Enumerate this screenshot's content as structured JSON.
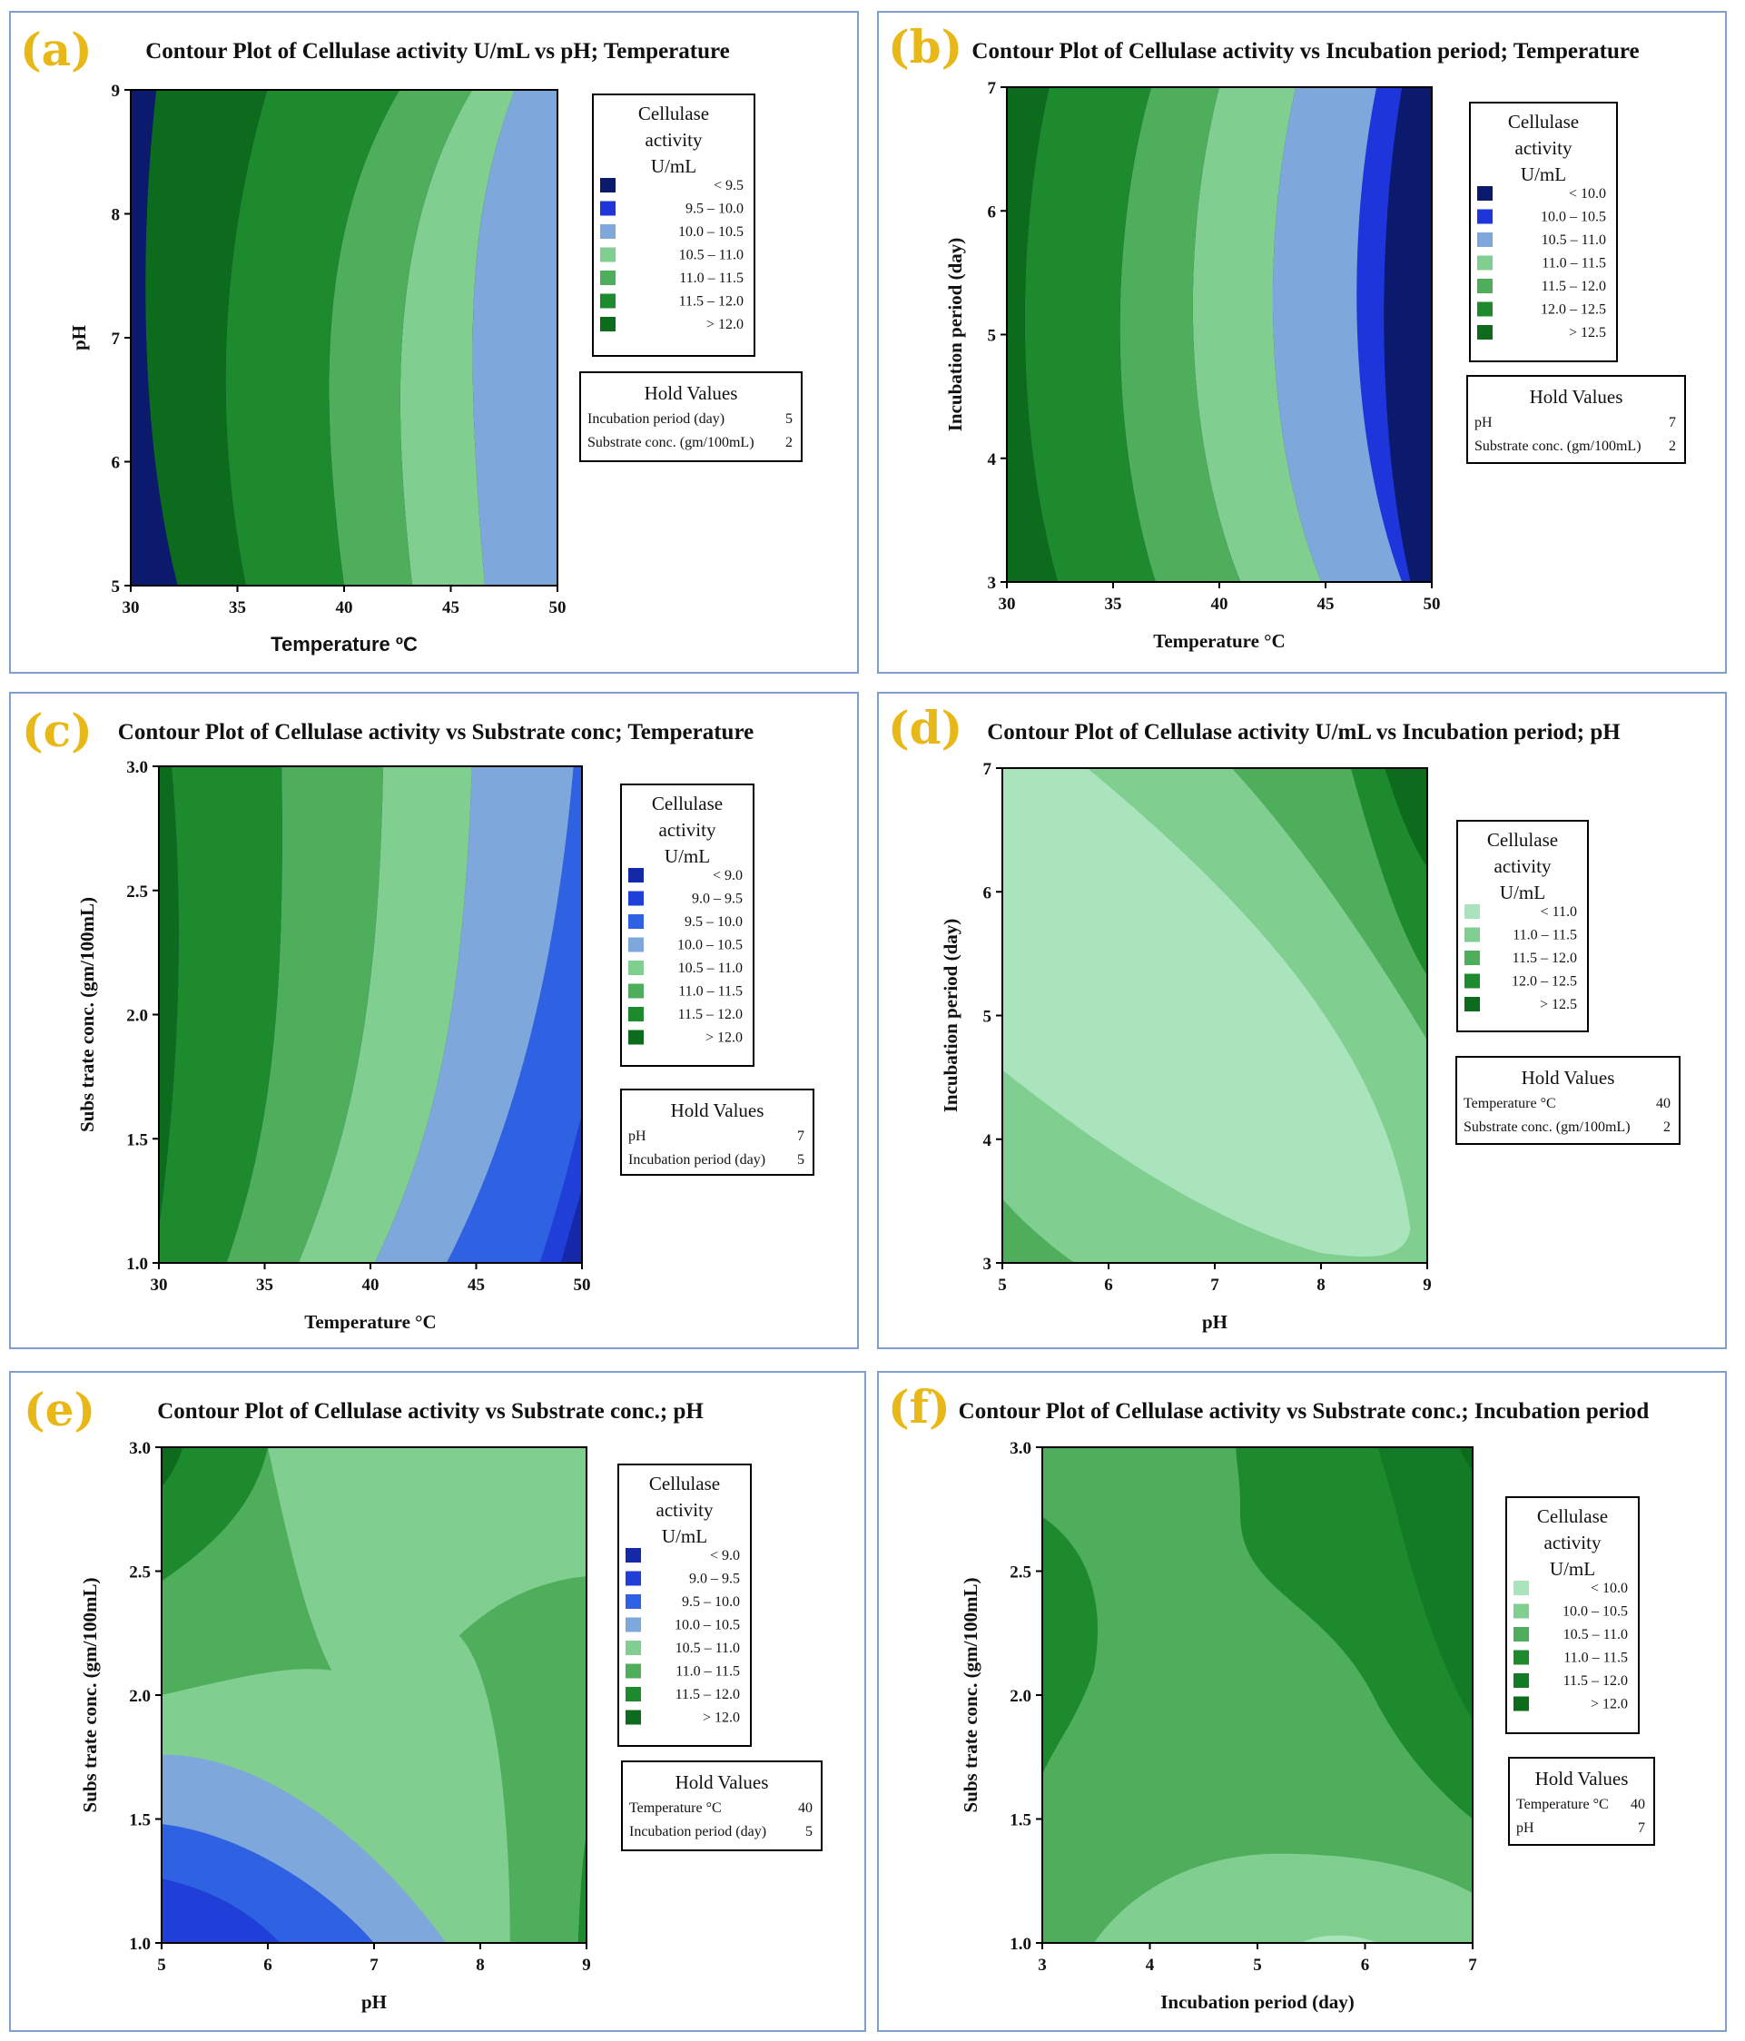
{
  "figure": {
    "panels_count": 6
  },
  "chart_data": [
    {
      "id": "a",
      "type": "contour",
      "label": "(a)",
      "title": "Contour Plot of Cellulase activity U/mL vs pH; Temperature",
      "xlabel": "Temperature ºC",
      "ylabel": "pH",
      "xlim": [
        30,
        50
      ],
      "ylim": [
        5,
        9
      ],
      "xticks": [
        "30",
        "35",
        "40",
        "45",
        "50"
      ],
      "yticks": [
        "5",
        "6",
        "7",
        "8",
        "9"
      ],
      "legend": {
        "title": [
          "Cellulase",
          "activity",
          "U/mL"
        ],
        "levels": [
          {
            "range": "<  9.5",
            "color": "#0c1a6e"
          },
          {
            "range": "9.5  –  10.0",
            "color": "#1f35dc"
          },
          {
            "range": "10.0  –  10.5",
            "color": "#7ea7dc"
          },
          {
            "range": "10.5  –  11.0",
            "color": "#80ce90"
          },
          {
            "range": "11.0  –  11.5",
            "color": "#4fae5c"
          },
          {
            "range": "11.5  –  12.0",
            "color": "#1e8a2e"
          },
          {
            "range": ">  12.0",
            "color": "#0d6b1e"
          }
        ]
      },
      "hold": {
        "title": "Hold Values",
        "rows": [
          {
            "name": "Incubation period (day)",
            "value": "5"
          },
          {
            "name": "Substrate conc. (gm/100mL)",
            "value": "2"
          }
        ]
      }
    },
    {
      "id": "b",
      "type": "contour",
      "label": "(b)",
      "title": "Contour Plot of Cellulase activity vs Incubation period; Temperature",
      "xlabel": "Temperature °C",
      "ylabel": "Incubation period (day)",
      "xlim": [
        30,
        50
      ],
      "ylim": [
        3,
        7
      ],
      "xticks": [
        "30",
        "35",
        "40",
        "45",
        "50"
      ],
      "yticks": [
        "3",
        "4",
        "5",
        "6",
        "7"
      ],
      "legend": {
        "title": [
          "Cellulase",
          "activity",
          "U/mL"
        ],
        "levels": [
          {
            "range": "<  10.0",
            "color": "#0c1a6e"
          },
          {
            "range": "10.0  –  10.5",
            "color": "#1f35dc"
          },
          {
            "range": "10.5  –  11.0",
            "color": "#7ea7dc"
          },
          {
            "range": "11.0  –  11.5",
            "color": "#80ce90"
          },
          {
            "range": "11.5  –  12.0",
            "color": "#4fae5c"
          },
          {
            "range": "12.0  –  12.5",
            "color": "#1e8a2e"
          },
          {
            "range": ">  12.5",
            "color": "#0d6b1e"
          }
        ]
      },
      "hold": {
        "title": "Hold Values",
        "rows": [
          {
            "name": "pH",
            "value": "7"
          },
          {
            "name": "Substrate conc. (gm/100mL)",
            "value": "2"
          }
        ]
      }
    },
    {
      "id": "c",
      "type": "contour",
      "label": "(c)",
      "title": "Contour Plot of Cellulase activity vs Substrate conc; Temperature",
      "xlabel": "Temperature °C",
      "ylabel": "Subs trate conc. (gm/100mL)",
      "xlim": [
        30,
        50
      ],
      "ylim": [
        1.0,
        3.0
      ],
      "xticks": [
        "30",
        "35",
        "40",
        "45",
        "50"
      ],
      "yticks": [
        "1.0",
        "1.5",
        "2.0",
        "2.5",
        "3.0"
      ],
      "legend": {
        "title": [
          "Cellulase",
          "activity",
          "U/mL"
        ],
        "levels": [
          {
            "range": "<  9.0",
            "color": "#1428a8"
          },
          {
            "range": "9.0  –  9.5",
            "color": "#1f3fd8"
          },
          {
            "range": "9.5  –  10.0",
            "color": "#2f62e2"
          },
          {
            "range": "10.0  –  10.5",
            "color": "#7ea7dc"
          },
          {
            "range": "10.5  –  11.0",
            "color": "#80ce90"
          },
          {
            "range": "11.0  –  11.5",
            "color": "#4fae5c"
          },
          {
            "range": "11.5  –  12.0",
            "color": "#1e8a2e"
          },
          {
            "range": ">  12.0",
            "color": "#0d6b1e"
          }
        ]
      },
      "hold": {
        "title": "Hold Values",
        "rows": [
          {
            "name": "pH",
            "value": "7"
          },
          {
            "name": "Incubation period (day)",
            "value": "5"
          }
        ]
      }
    },
    {
      "id": "d",
      "type": "contour",
      "label": "(d)",
      "title": "Contour Plot of Cellulase activity U/mL vs Incubation period; pH",
      "xlabel": "pH",
      "ylabel": "Incubation period (day)",
      "xlim": [
        5,
        9
      ],
      "ylim": [
        3,
        7
      ],
      "xticks": [
        "5",
        "6",
        "7",
        "8",
        "9"
      ],
      "yticks": [
        "3",
        "4",
        "5",
        "6",
        "7"
      ],
      "legend": {
        "title": [
          "Cellulase",
          "activity",
          "U/mL"
        ],
        "levels": [
          {
            "range": "<  11.0",
            "color": "#a9e4bd"
          },
          {
            "range": "11.0  –  11.5",
            "color": "#80ce90"
          },
          {
            "range": "11.5  –  12.0",
            "color": "#4fae5c"
          },
          {
            "range": "12.0  –  12.5",
            "color": "#1e8a2e"
          },
          {
            "range": ">  12.5",
            "color": "#0d6b1e"
          }
        ]
      },
      "hold": {
        "title": "Hold Values",
        "rows": [
          {
            "name": "Temperature °C",
            "value": "40"
          },
          {
            "name": "Substrate conc. (gm/100mL)",
            "value": "2"
          }
        ]
      }
    },
    {
      "id": "e",
      "type": "contour",
      "label": "(e)",
      "title": "Contour Plot of Cellulase activity vs Substrate conc.; pH",
      "xlabel": "pH",
      "ylabel": "Subs trate conc. (gm/100mL)",
      "xlim": [
        5,
        9
      ],
      "ylim": [
        1.0,
        3.0
      ],
      "xticks": [
        "5",
        "6",
        "7",
        "8",
        "9"
      ],
      "yticks": [
        "1.0",
        "1.5",
        "2.0",
        "2.5",
        "3.0"
      ],
      "legend": {
        "title": [
          "Cellulase",
          "activity",
          "U/mL"
        ],
        "levels": [
          {
            "range": "<  9.0",
            "color": "#1428a8"
          },
          {
            "range": "9.0  –  9.5",
            "color": "#1f3fd8"
          },
          {
            "range": "9.5  –  10.0",
            "color": "#2f62e2"
          },
          {
            "range": "10.0  –  10.5",
            "color": "#7ea7dc"
          },
          {
            "range": "10.5  –  11.0",
            "color": "#80ce90"
          },
          {
            "range": "11.0  –  11.5",
            "color": "#4fae5c"
          },
          {
            "range": "11.5  –  12.0",
            "color": "#1e8a2e"
          },
          {
            "range": ">  12.0",
            "color": "#0d6b1e"
          }
        ]
      },
      "hold": {
        "title": "Hold Values",
        "rows": [
          {
            "name": "Temperature °C",
            "value": "40"
          },
          {
            "name": "Incubation period (day)",
            "value": "5"
          }
        ]
      }
    },
    {
      "id": "f",
      "type": "contour",
      "label": "(f)",
      "title": "Contour Plot of Cellulase activity vs Substrate conc.; Incubation period",
      "xlabel": "Incubation period (day)",
      "ylabel": "Subs trate conc. (gm/100mL)",
      "xlim": [
        3,
        7
      ],
      "ylim": [
        1.0,
        3.0
      ],
      "xticks": [
        "3",
        "4",
        "5",
        "6",
        "7"
      ],
      "yticks": [
        "1.0",
        "1.5",
        "2.0",
        "2.5",
        "3.0"
      ],
      "legend": {
        "title": [
          "Cellulase",
          "activity",
          "U/mL"
        ],
        "levels": [
          {
            "range": "<  10.0",
            "color": "#a9e4bd"
          },
          {
            "range": "10.0  –  10.5",
            "color": "#80ce90"
          },
          {
            "range": "10.5  –  11.0",
            "color": "#4fae5c"
          },
          {
            "range": "11.0  –  11.5",
            "color": "#1e8a2e"
          },
          {
            "range": "11.5  –  12.0",
            "color": "#137b26"
          },
          {
            "range": ">  12.0",
            "color": "#0d6b1e"
          }
        ]
      },
      "hold": {
        "title": "Hold Values",
        "rows": [
          {
            "name": "Temperature °C",
            "value": "40"
          },
          {
            "name": "pH",
            "value": "7"
          }
        ]
      }
    }
  ]
}
